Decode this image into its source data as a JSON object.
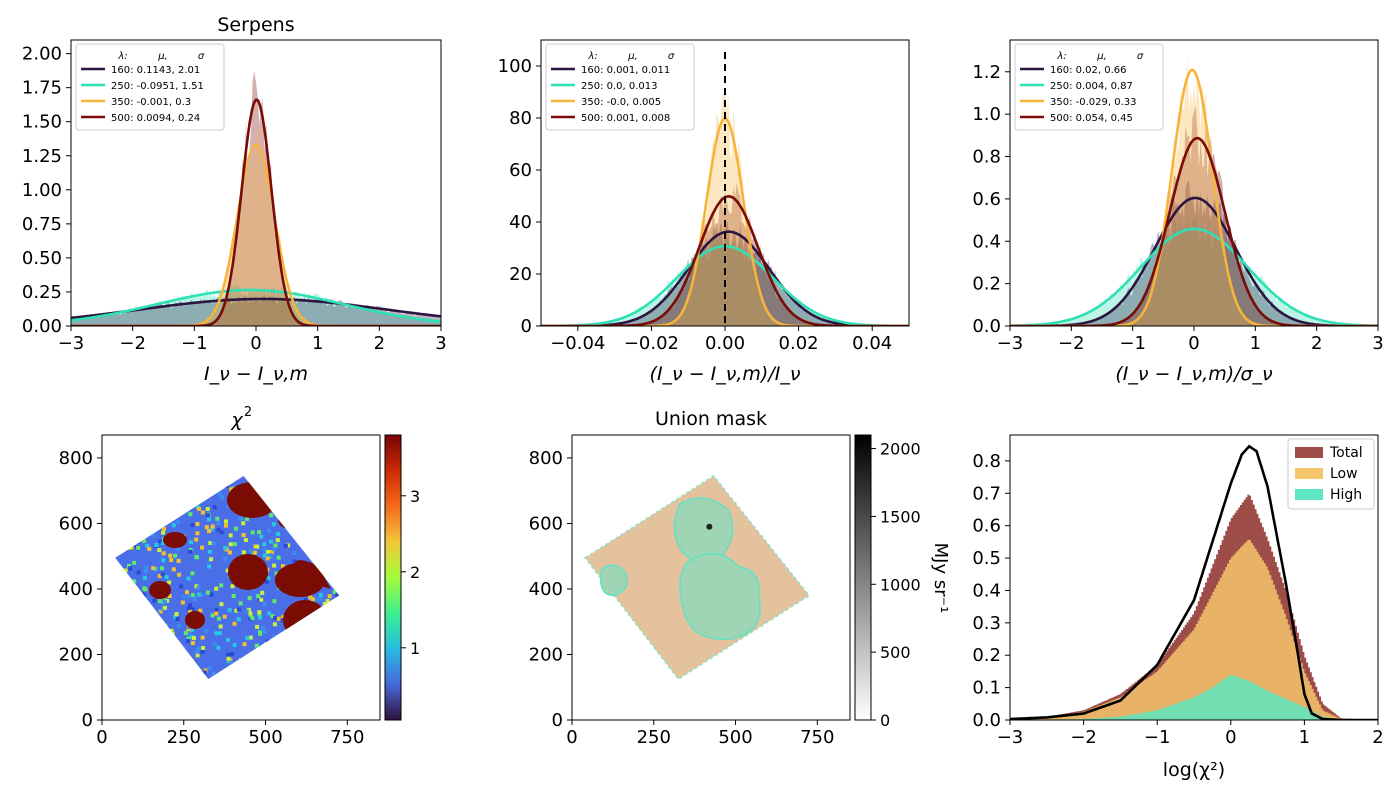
{
  "figure": {
    "panels": [
      {
        "title": "Serpens",
        "xlabel": "I_ν − I_ν,m"
      },
      {
        "title": "",
        "xlabel": "(I_ν − I_ν,m)/I_ν"
      },
      {
        "title": "",
        "xlabel": "(I_ν − I_ν,m)/σ_ν"
      },
      {
        "title": "χ²"
      },
      {
        "title": "Union mask",
        "colorbar_label": "MJy sr⁻¹"
      },
      {
        "title": "",
        "xlabel": "log(χ²)"
      }
    ],
    "legend_header": [
      "λ:",
      "μ,",
      "σ"
    ]
  },
  "colors": {
    "160": "#2d1541",
    "250": "#2ee0b4",
    "350": "#f6b43a",
    "500": "#7a0b06",
    "total": "#9e4c48",
    "low": "#f5c56c",
    "high": "#5de6c1"
  },
  "chart_data": [
    {
      "type": "line",
      "title": "Serpens",
      "xlabel": "I_ν − I_ν,m",
      "xlim": [
        -3,
        3
      ],
      "ylim": [
        0,
        2.1
      ],
      "xticks": [
        "−3",
        "−2",
        "−1",
        "0",
        "1",
        "2",
        "3"
      ],
      "yticks": [
        "0.00",
        "0.25",
        "0.50",
        "0.75",
        "1.00",
        "1.25",
        "1.50",
        "1.75",
        "2.00"
      ],
      "series": [
        {
          "name": "160",
          "label": "160: 0.1143,  2.01",
          "mu": 0.1143,
          "sigma": 2.01
        },
        {
          "name": "250",
          "label": "250: -0.0951,  1.51",
          "mu": -0.0951,
          "sigma": 1.51
        },
        {
          "name": "350",
          "label": "350: -0.001,  0.3",
          "mu": -0.001,
          "sigma": 0.3
        },
        {
          "name": "500",
          "label": "500: 0.0094,  0.24",
          "mu": 0.0094,
          "sigma": 0.24
        }
      ]
    },
    {
      "type": "line",
      "xlabel": "(I_ν − I_ν,m)/I_ν",
      "xlim": [
        -0.05,
        0.05
      ],
      "ylim": [
        0,
        110
      ],
      "xticks": [
        "−0.04",
        "−0.02",
        "0.00",
        "0.02",
        "0.04"
      ],
      "yticks": [
        "0",
        "20",
        "40",
        "60",
        "80",
        "100"
      ],
      "vline": 0,
      "series": [
        {
          "name": "160",
          "label": "160: 0.001,  0.011",
          "mu": 0.001,
          "sigma": 0.011
        },
        {
          "name": "250",
          "label": "250: 0.0,  0.013",
          "mu": 0.0,
          "sigma": 0.013
        },
        {
          "name": "350",
          "label": "350: -0.0,  0.005",
          "mu": -0.0,
          "sigma": 0.005
        },
        {
          "name": "500",
          "label": "500: 0.001,  0.008",
          "mu": 0.001,
          "sigma": 0.008
        }
      ]
    },
    {
      "type": "line",
      "xlabel": "(I_ν − I_ν,m)/σ_ν",
      "xlim": [
        -3,
        3
      ],
      "ylim": [
        0,
        1.35
      ],
      "xticks": [
        "−3",
        "−2",
        "−1",
        "0",
        "1",
        "2",
        "3"
      ],
      "yticks": [
        "0.0",
        "0.2",
        "0.4",
        "0.6",
        "0.8",
        "1.0",
        "1.2"
      ],
      "series": [
        {
          "name": "160",
          "label": "160: 0.02,  0.66",
          "mu": 0.02,
          "sigma": 0.66
        },
        {
          "name": "250",
          "label": "250: 0.004,  0.87",
          "mu": 0.004,
          "sigma": 0.87
        },
        {
          "name": "350",
          "label": "350: -0.029,  0.33",
          "mu": -0.029,
          "sigma": 0.33
        },
        {
          "name": "500",
          "label": "500: 0.054,  0.45",
          "mu": 0.054,
          "sigma": 0.45
        }
      ]
    },
    {
      "type": "heatmap",
      "title": "χ²",
      "xlim": [
        0,
        850
      ],
      "ylim": [
        0,
        870
      ],
      "xticks": [
        "0",
        "250",
        "500",
        "750"
      ],
      "yticks": [
        "0",
        "200",
        "400",
        "600",
        "800"
      ],
      "colorbar": {
        "range": [
          0.05,
          3.8
        ],
        "ticks": [
          "1",
          "2",
          "3"
        ]
      }
    },
    {
      "type": "heatmap",
      "title": "Union mask",
      "xlim": [
        0,
        850
      ],
      "ylim": [
        0,
        870
      ],
      "xticks": [
        "0",
        "250",
        "500",
        "750"
      ],
      "yticks": [
        "0",
        "200",
        "400",
        "600",
        "800"
      ],
      "colorbar": {
        "range": [
          0,
          2100
        ],
        "ticks": [
          "0",
          "500",
          "1000",
          "1500",
          "2000"
        ],
        "label": "MJy sr⁻¹"
      }
    },
    {
      "type": "area",
      "xlabel": "log(χ²)",
      "xlim": [
        -3,
        2
      ],
      "ylim": [
        0,
        0.88
      ],
      "xticks": [
        "−3",
        "−2",
        "−1",
        "0",
        "1",
        "2"
      ],
      "yticks": [
        "0.0",
        "0.1",
        "0.2",
        "0.3",
        "0.4",
        "0.5",
        "0.6",
        "0.7",
        "0.8"
      ],
      "legend": "top-right",
      "series": [
        {
          "name": "Total",
          "x": [
            -3,
            -2.5,
            -2,
            -1.5,
            -1,
            -0.5,
            0,
            0.25,
            0.5,
            0.75,
            1,
            1.25,
            1.5,
            2
          ],
          "y": [
            0.005,
            0.01,
            0.03,
            0.08,
            0.17,
            0.33,
            0.62,
            0.7,
            0.56,
            0.4,
            0.2,
            0.05,
            0.005,
            0
          ]
        },
        {
          "name": "Low",
          "x": [
            -3,
            -2.5,
            -2,
            -1.5,
            -1,
            -0.5,
            0,
            0.25,
            0.5,
            0.75,
            1,
            1.25,
            1.5,
            2
          ],
          "y": [
            0.005,
            0.01,
            0.025,
            0.07,
            0.15,
            0.28,
            0.5,
            0.56,
            0.47,
            0.32,
            0.15,
            0.03,
            0.003,
            0
          ]
        },
        {
          "name": "High",
          "x": [
            -3,
            -2,
            -1.5,
            -1,
            -0.5,
            -0.25,
            0,
            0.25,
            0.5,
            1,
            1.25,
            1.5,
            2
          ],
          "y": [
            0,
            0.003,
            0.01,
            0.03,
            0.07,
            0.1,
            0.14,
            0.12,
            0.09,
            0.04,
            0.01,
            0.002,
            0
          ]
        },
        {
          "name": "",
          "x": [
            -3,
            -2.5,
            -2,
            -1.5,
            -1,
            -0.5,
            -0.25,
            0,
            0.15,
            0.25,
            0.35,
            0.5,
            0.75,
            0.9,
            1,
            1.1,
            1.25,
            1.5,
            2
          ],
          "y": [
            0.003,
            0.008,
            0.02,
            0.06,
            0.17,
            0.37,
            0.55,
            0.73,
            0.82,
            0.845,
            0.83,
            0.72,
            0.42,
            0.22,
            0.08,
            0.02,
            0.003,
            0,
            0
          ]
        }
      ]
    }
  ]
}
